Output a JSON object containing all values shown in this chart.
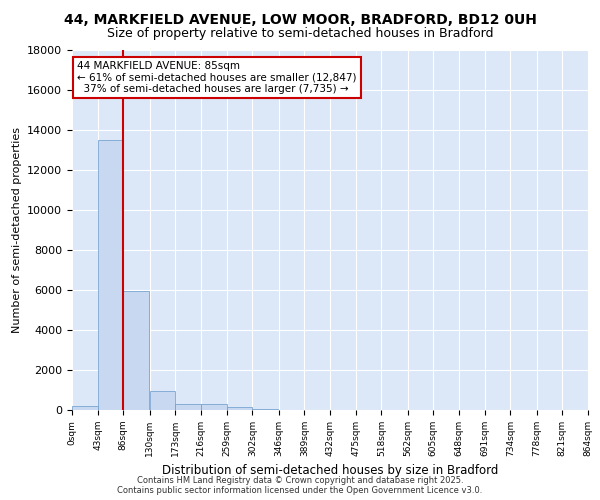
{
  "title": "44, MARKFIELD AVENUE, LOW MOOR, BRADFORD, BD12 0UH",
  "subtitle": "Size of property relative to semi-detached houses in Bradford",
  "xlabel": "Distribution of semi-detached houses by size in Bradford",
  "ylabel": "Number of semi-detached properties",
  "bin_edges": [
    0,
    43,
    86,
    130,
    173,
    216,
    259,
    302,
    346,
    389,
    432,
    475,
    518,
    562,
    605,
    648,
    691,
    734,
    778,
    821,
    864
  ],
  "bar_heights": [
    200,
    13500,
    5950,
    950,
    310,
    290,
    150,
    60,
    0,
    0,
    0,
    0,
    0,
    0,
    0,
    0,
    0,
    0,
    0,
    0
  ],
  "bar_color": "#c8d8f0",
  "bar_edgecolor": "#6699cc",
  "property_size": 85,
  "vline_color": "#cc0000",
  "annotation_line1": "44 MARKFIELD AVENUE: 85sqm",
  "annotation_line2": "← 61% of semi-detached houses are smaller (12,847)",
  "annotation_line3": "  37% of semi-detached houses are larger (7,735) →",
  "annotation_box_color": "#ffffff",
  "annotation_box_edgecolor": "#cc0000",
  "ylim": [
    0,
    18000
  ],
  "yticks": [
    0,
    2000,
    4000,
    6000,
    8000,
    10000,
    12000,
    14000,
    16000,
    18000
  ],
  "background_color": "#dce8f8",
  "footer_line1": "Contains HM Land Registry data © Crown copyright and database right 2025.",
  "footer_line2": "Contains public sector information licensed under the Open Government Licence v3.0.",
  "title_fontsize": 10,
  "subtitle_fontsize": 9,
  "figsize": [
    6.0,
    5.0
  ],
  "dpi": 100
}
